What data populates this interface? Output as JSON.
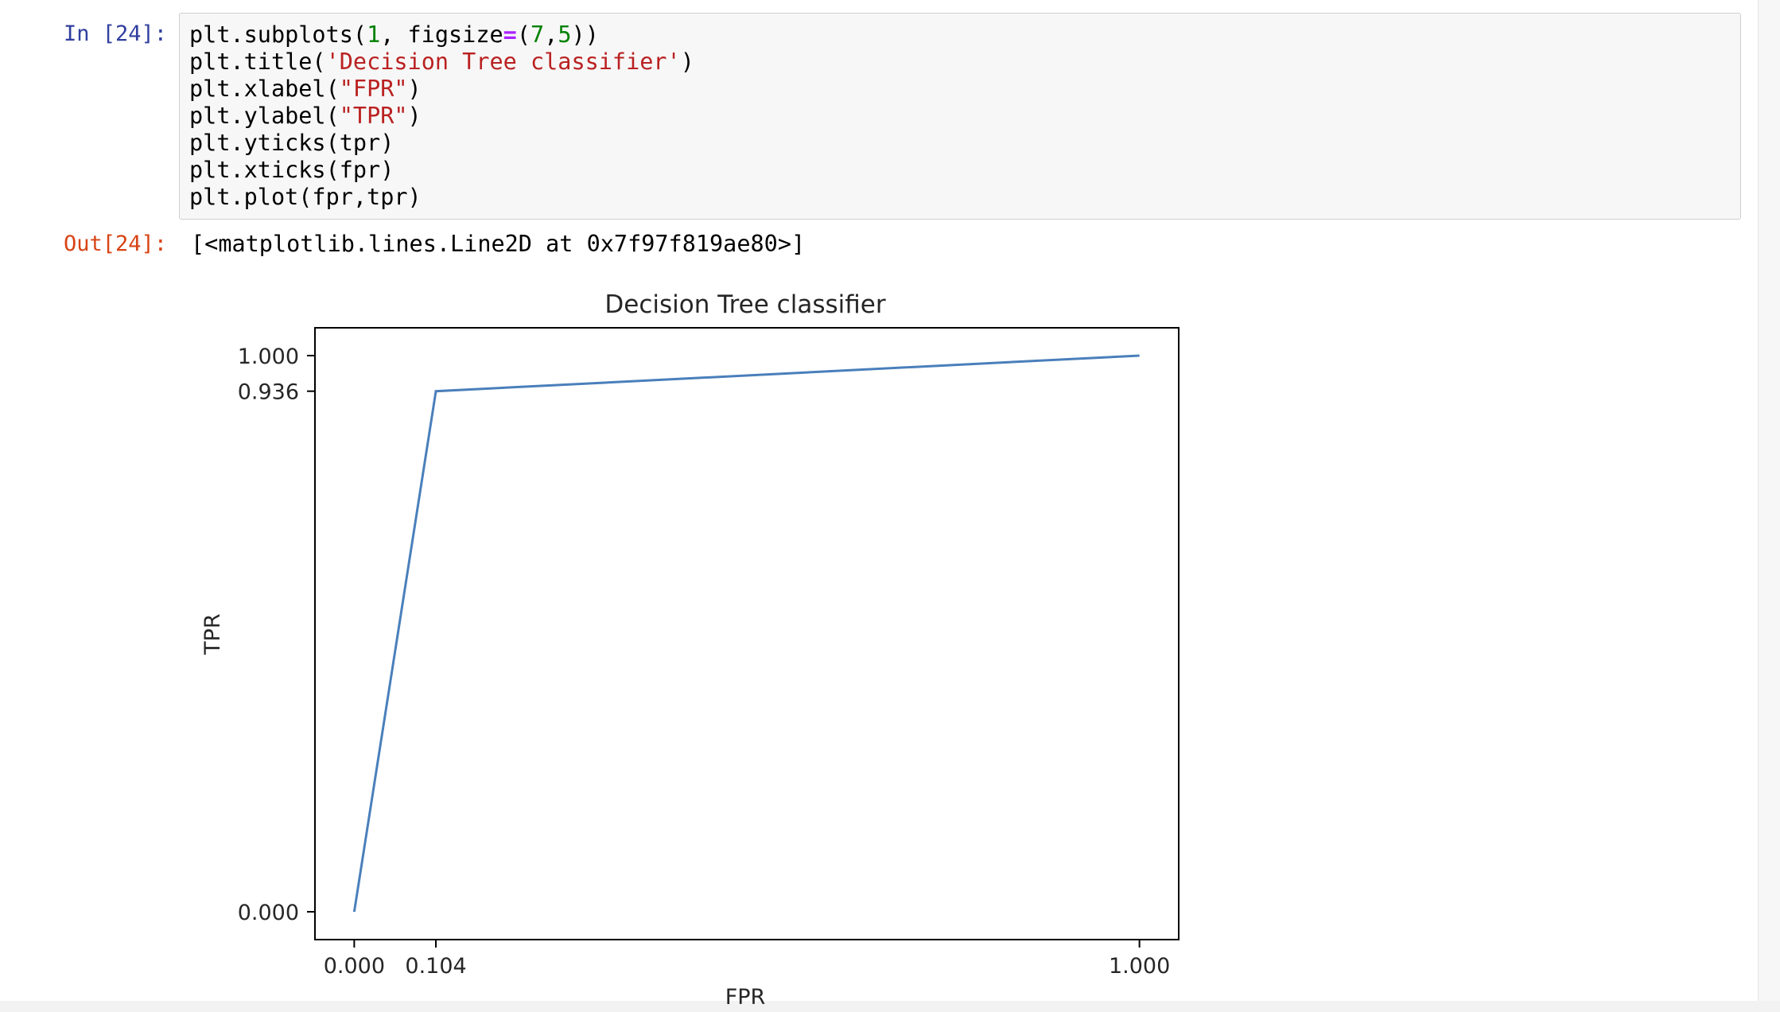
{
  "cell": {
    "in_prompt": "In [24]:",
    "out_prompt": "Out[24]:",
    "output_text": "[<matplotlib.lines.Line2D at 0x7f97f819ae80>]",
    "code": {
      "line1": {
        "a": "plt.subplots(",
        "b": "1",
        "c": ", figsize",
        "d": "=",
        "e": "(",
        "f": "7",
        "g": ",",
        "h": "5",
        "i": "))"
      },
      "line2": {
        "a": "plt.title(",
        "b": "'Decision Tree classifier'",
        "c": ")"
      },
      "line3": {
        "a": "plt.xlabel(",
        "b": "\"FPR\"",
        "c": ")"
      },
      "line4": {
        "a": "plt.ylabel(",
        "b": "\"TPR\"",
        "c": ")"
      },
      "line5": {
        "a": "plt.yticks(tpr)"
      },
      "line6": {
        "a": "plt.xticks(fpr)"
      },
      "line7": {
        "a": "plt.plot(fpr,tpr)"
      }
    }
  },
  "chart_data": {
    "type": "line",
    "title": "Decision Tree classifier",
    "xlabel": "FPR",
    "ylabel": "TPR",
    "x": [
      0.0,
      0.104,
      1.0
    ],
    "y": [
      0.0,
      0.936,
      1.0
    ],
    "xticks": [
      "0.000",
      "0.104",
      "1.000"
    ],
    "yticks": [
      "0.000",
      "0.936",
      "1.000"
    ],
    "xlim": [
      -0.05,
      1.05
    ],
    "ylim": [
      -0.05,
      1.05
    ],
    "grid": false,
    "line_color": "#4a7fbb"
  }
}
